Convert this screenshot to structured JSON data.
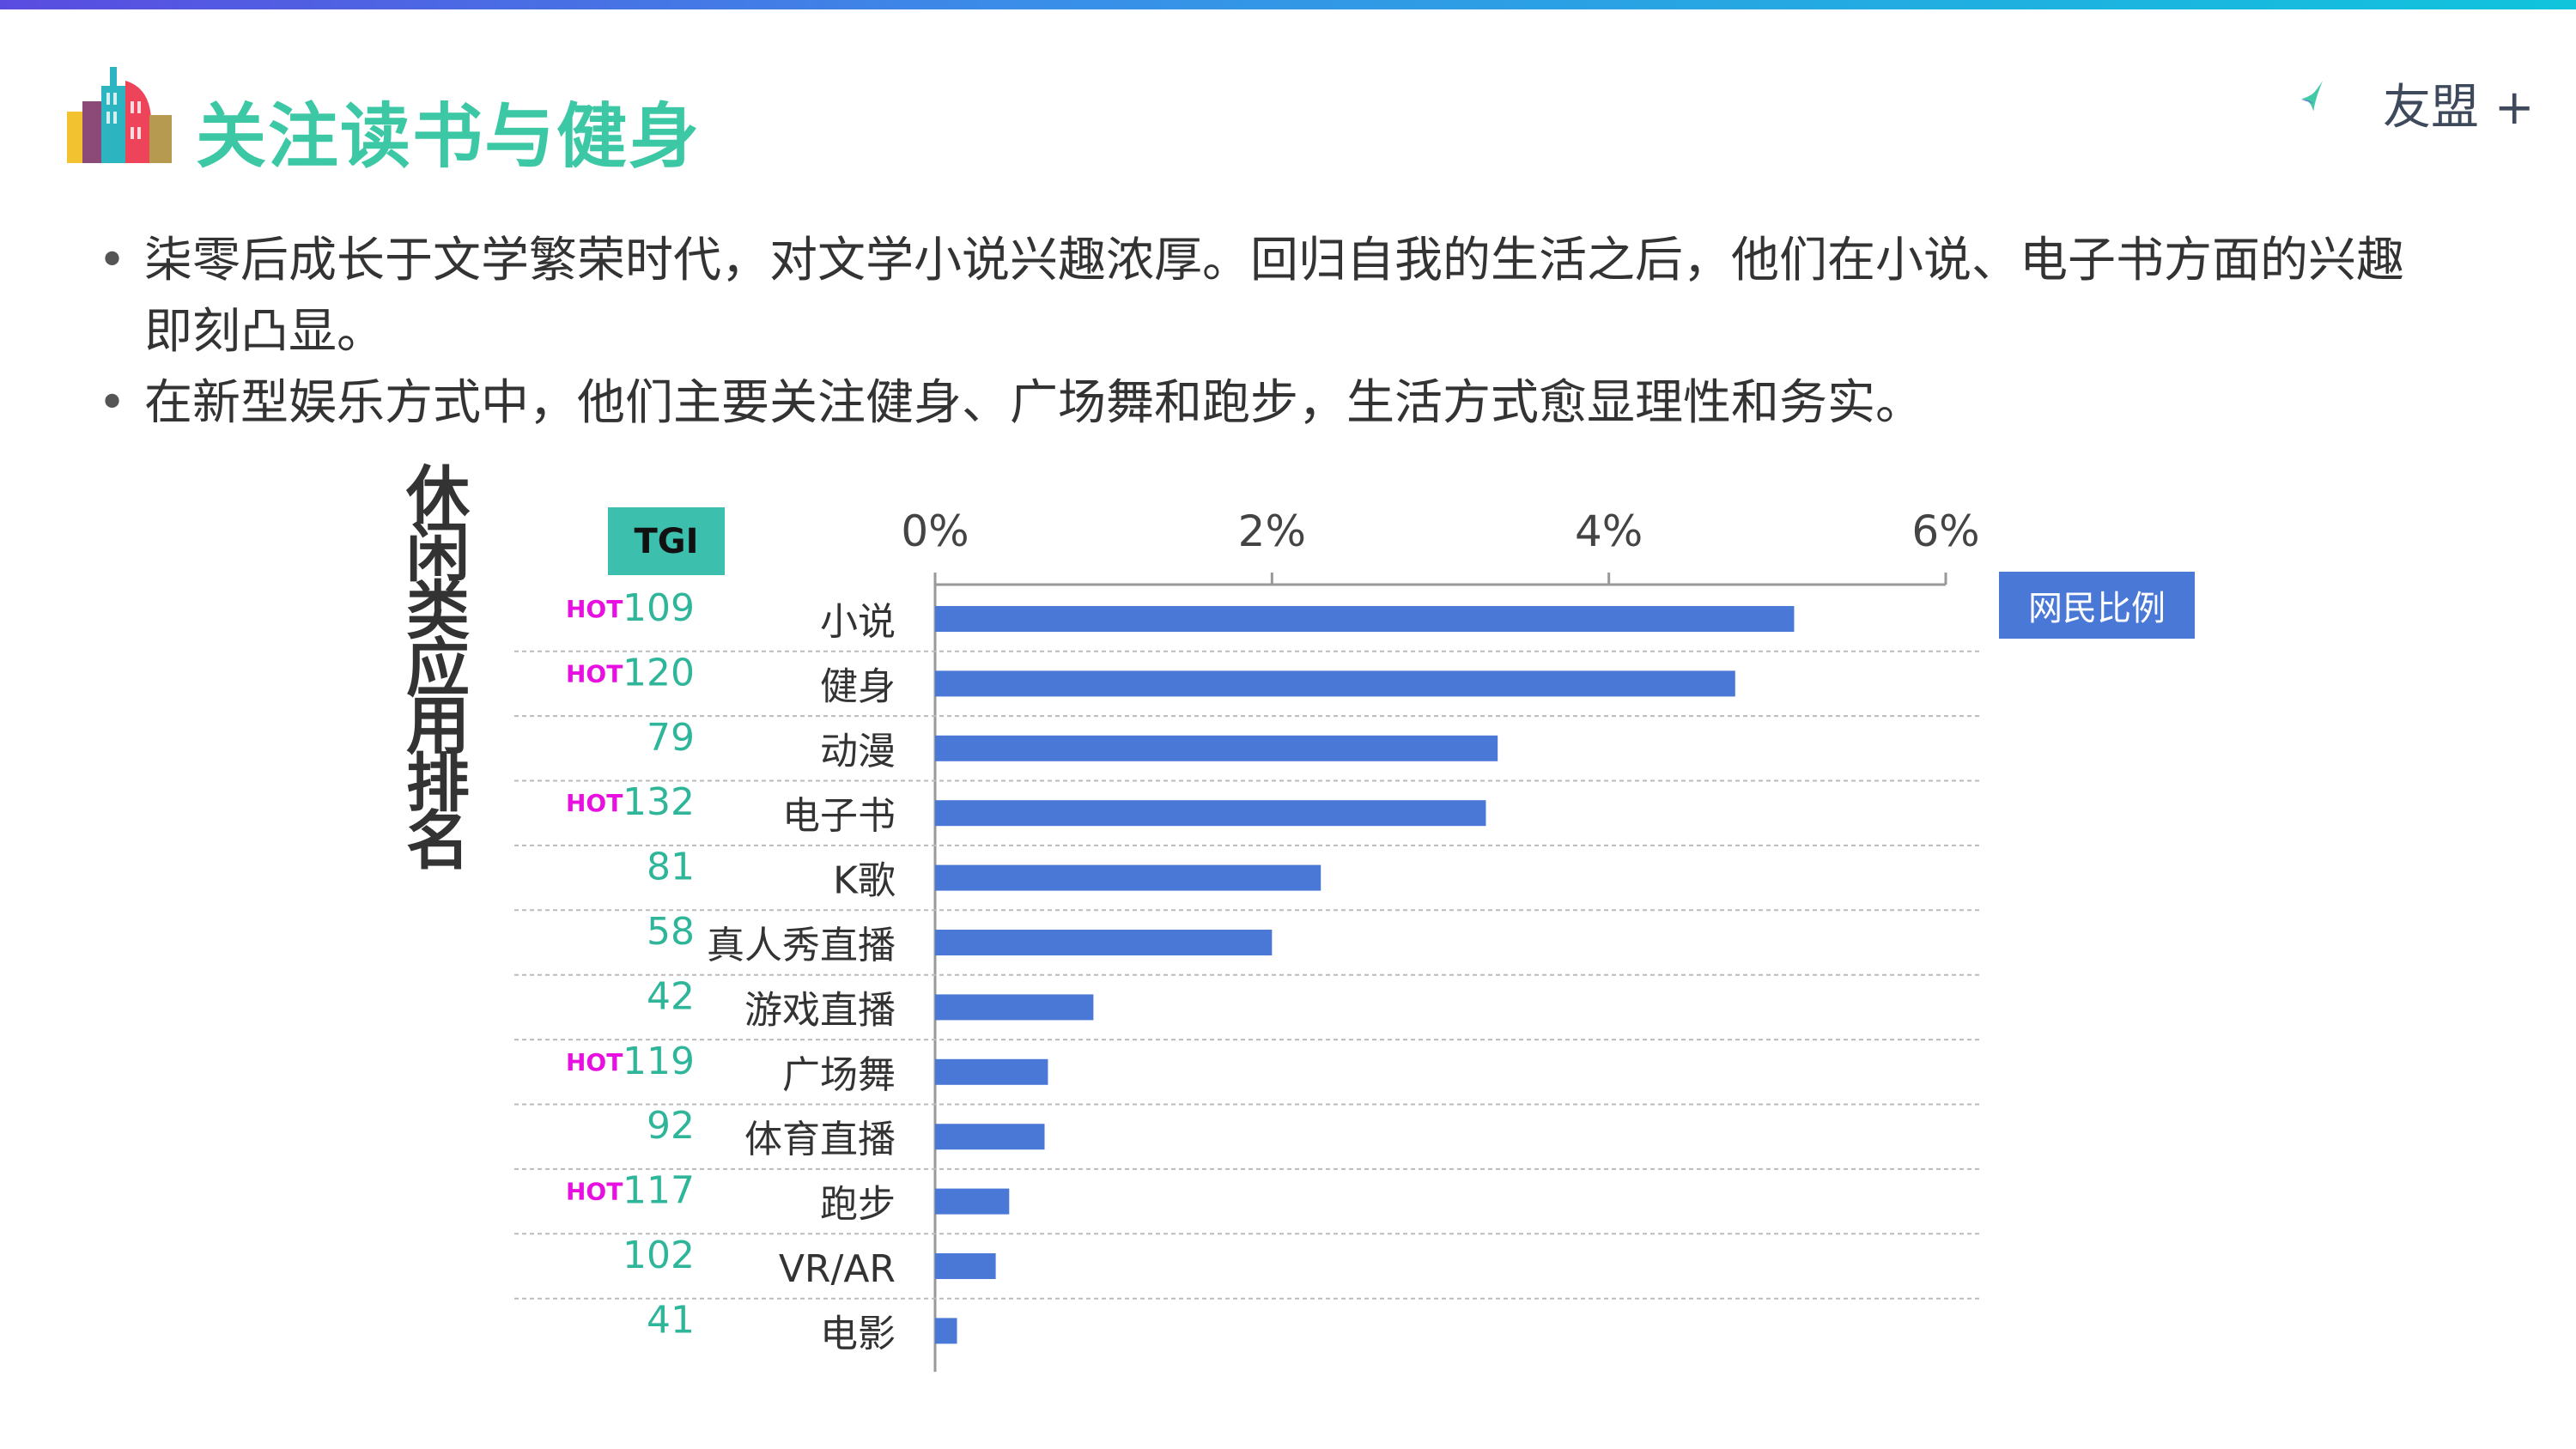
{
  "header": {
    "title": "关注读书与健身",
    "logo_text": "友盟 +"
  },
  "bullets": [
    "柒零后成长于文学繁荣时代，对文学小说兴趣浓厚。回归自我的生活之后，他们在小说、电子书方面的兴趣即刻凸显。",
    "在新型娱乐方式中，他们主要关注健身、广场舞和跑步，生活方式愈显理性和务实。"
  ],
  "colors": {
    "bar": "#4a78d6",
    "tgi": "#2fb59a",
    "hot": "#e810e0",
    "title": "#3cc8a5"
  },
  "chart_data": {
    "type": "bar",
    "orientation": "horizontal",
    "title": "休闲类应用排名",
    "tgi_label": "TGI",
    "legend": "网民比例",
    "legend_position": "right",
    "xlim": [
      0,
      6
    ],
    "ticks": [
      "0%",
      "2%",
      "4%",
      "6%"
    ],
    "tick_values": [
      0,
      2,
      4,
      6
    ],
    "hot_label": "HOT",
    "categories": [
      "小说",
      "健身",
      "动漫",
      "电子书",
      "K歌",
      "真人秀直播",
      "游戏直播",
      "广场舞",
      "体育直播",
      "跑步",
      "VR/AR",
      "电影"
    ],
    "values": [
      5.1,
      4.75,
      3.34,
      3.27,
      2.29,
      2.0,
      0.94,
      0.67,
      0.65,
      0.44,
      0.36,
      0.13
    ],
    "tgi": [
      109,
      120,
      79,
      132,
      81,
      58,
      42,
      119,
      92,
      117,
      102,
      41
    ],
    "hot": [
      true,
      true,
      false,
      true,
      false,
      false,
      false,
      true,
      false,
      true,
      false,
      false
    ]
  }
}
